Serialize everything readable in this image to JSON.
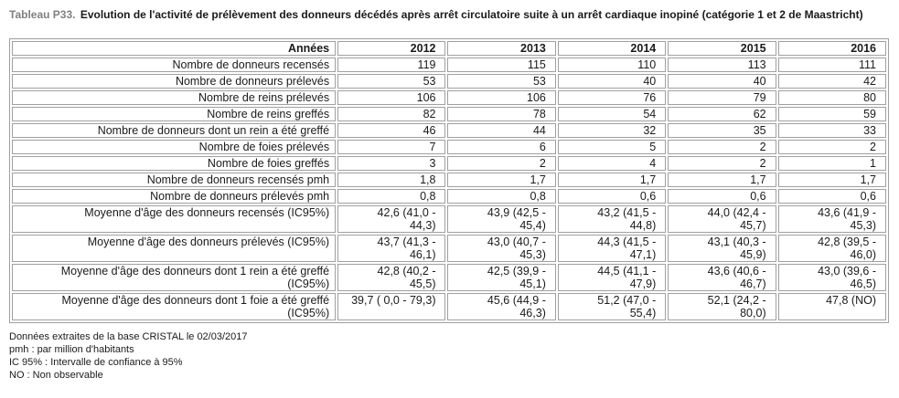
{
  "title": {
    "label": "Tableau P33.",
    "text": "Evolution de l'activité de prélèvement des donneurs décédés après arrêt circulatoire suite à un arrêt cardiaque inopiné (catégorie 1 et 2 de Maastricht)"
  },
  "table": {
    "header": {
      "label": "Années",
      "years": [
        "2012",
        "2013",
        "2014",
        "2015",
        "2016"
      ]
    },
    "rows": [
      {
        "label": "Nombre de donneurs recensés",
        "values": [
          "119",
          "115",
          "110",
          "113",
          "111"
        ]
      },
      {
        "label": "Nombre de donneurs prélevés",
        "values": [
          "53",
          "53",
          "40",
          "40",
          "42"
        ]
      },
      {
        "label": "Nombre de reins prélevés",
        "values": [
          "106",
          "106",
          "76",
          "79",
          "80"
        ]
      },
      {
        "label": "Nombre de reins greffés",
        "values": [
          "82",
          "78",
          "54",
          "62",
          "59"
        ]
      },
      {
        "label": "Nombre de donneurs dont un rein a été greffé",
        "values": [
          "46",
          "44",
          "32",
          "35",
          "33"
        ]
      },
      {
        "label": "Nombre de foies prélevés",
        "values": [
          "7",
          "6",
          "5",
          "2",
          "2"
        ]
      },
      {
        "label": "Nombre de foies greffés",
        "values": [
          "3",
          "2",
          "4",
          "2",
          "1"
        ]
      },
      {
        "label": "Nombre de donneurs recensés pmh",
        "values": [
          "1,8",
          "1,7",
          "1,7",
          "1,7",
          "1,7"
        ]
      },
      {
        "label": "Nombre de donneurs prélevés pmh",
        "values": [
          "0,8",
          "0,8",
          "0,6",
          "0,6",
          "0,6"
        ]
      },
      {
        "label": "Moyenne d'âge des donneurs recensés (IC95%)",
        "values": [
          "42,6 (41,0 -\n44,3)",
          "43,9 (42,5 -\n45,4)",
          "43,2 (41,5 -\n44,8)",
          "44,0 (42,4 -\n45,7)",
          "43,6 (41,9 -\n45,3)"
        ]
      },
      {
        "label": "Moyenne d'âge des donneurs prélevés (IC95%)",
        "values": [
          "43,7 (41,3 -\n46,1)",
          "43,0 (40,7 -\n45,3)",
          "44,3 (41,5 -\n47,1)",
          "43,1 (40,3 -\n45,9)",
          "42,8 (39,5 -\n46,0)"
        ]
      },
      {
        "label": "Moyenne d'âge des donneurs dont 1 rein a été greffé\n(IC95%)",
        "values": [
          "42,8 (40,2 -\n45,5)",
          "42,5 (39,9 -\n45,1)",
          "44,5 (41,1 -\n47,9)",
          "43,6 (40,6 -\n46,7)",
          "43,0 (39,6 -\n46,5)"
        ]
      },
      {
        "label": "Moyenne d'âge des donneurs dont 1 foie a été greffé\n(IC95%)",
        "values": [
          "39,7 ( 0,0 - 79,3)",
          "45,6 (44,9 -\n46,3)",
          "51,2 (47,0 -\n55,4)",
          "52,1 (24,2 -\n80,0)",
          "47,8 (NO)"
        ]
      }
    ]
  },
  "notes": [
    "Données extraites de la base CRISTAL le 02/03/2017",
    "pmh : par million d'habitants",
    "IC 95% : Intervalle de confiance à 95%",
    "NO : Non observable"
  ],
  "colors": {
    "title_label": "#808080",
    "border": "#a0a0a0",
    "text": "#1a1a1a"
  }
}
